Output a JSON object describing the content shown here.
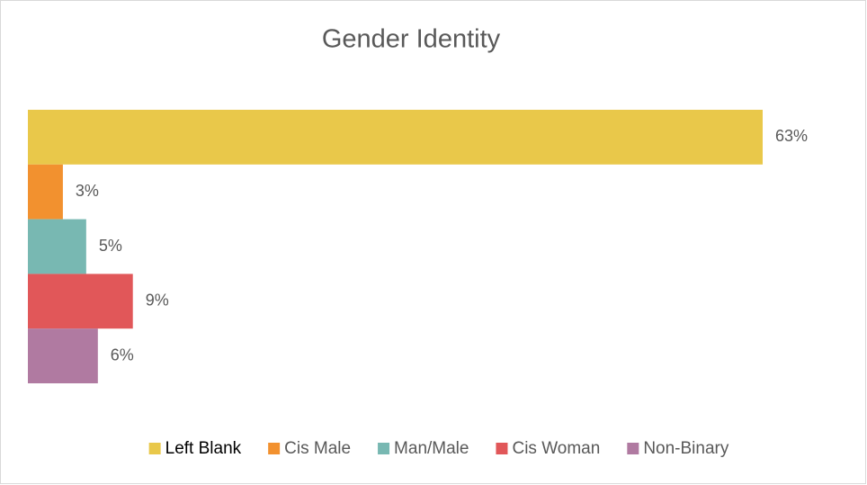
{
  "chart_data": {
    "type": "bar",
    "orientation": "horizontal",
    "title": "Gender Identity",
    "series": [
      {
        "name": "Left Blank",
        "color": "#E9C84A",
        "values": [
          63
        ],
        "value_labels": [
          "63%"
        ]
      },
      {
        "name": "Cis Male",
        "color": "#F2912F",
        "values": [
          3
        ],
        "value_labels": [
          "3%"
        ]
      },
      {
        "name": "Man/Male",
        "color": "#78B8B2",
        "values": [
          5
        ],
        "value_labels": [
          "5%"
        ]
      },
      {
        "name": "Cis Woman",
        "color": "#E15759",
        "values": [
          9
        ],
        "value_labels": [
          "9%"
        ]
      },
      {
        "name": "Non-Binary",
        "color": "#B07AA1",
        "values": [
          6
        ],
        "value_labels": [
          "6%"
        ]
      }
    ],
    "legend": "bottom"
  }
}
